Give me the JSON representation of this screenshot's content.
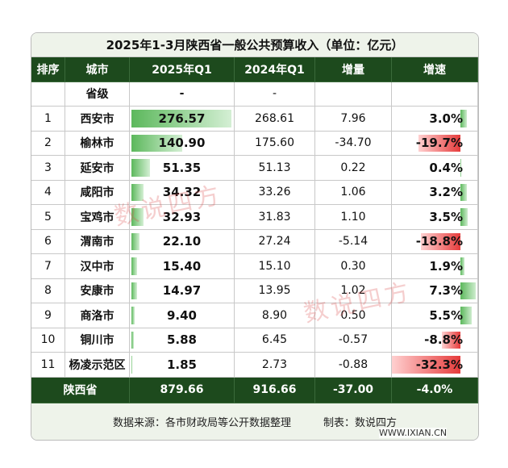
{
  "header": {
    "title": "2025年1-3月陕西省一般公共预算收入（单位：亿元）"
  },
  "table": {
    "columns": [
      "排序",
      "城市",
      "2025年Q1",
      "2024年Q1",
      "增量",
      "增速"
    ],
    "province_level": {
      "city": "省级",
      "q1_2025": "-",
      "q1_2024": "-"
    },
    "rows": [
      [
        "1",
        "西安市",
        "276.57",
        "268.61",
        "7.96",
        "3.0%"
      ],
      [
        "2",
        "榆林市",
        "140.90",
        "175.60",
        "-34.70",
        "-19.7%"
      ],
      [
        "3",
        "延安市",
        "51.35",
        "51.13",
        "0.22",
        "0.4%"
      ],
      [
        "4",
        "咸阳市",
        "34.32",
        "33.26",
        "1.06",
        "3.2%"
      ],
      [
        "5",
        "宝鸡市",
        "32.93",
        "31.83",
        "1.10",
        "3.5%"
      ],
      [
        "6",
        "渭南市",
        "22.10",
        "27.24",
        "-5.14",
        "-18.8%"
      ],
      [
        "7",
        "汉中市",
        "15.40",
        "15.10",
        "0.30",
        "1.9%"
      ],
      [
        "8",
        "安康市",
        "14.97",
        "13.95",
        "1.02",
        "7.3%"
      ],
      [
        "9",
        "商洛市",
        "9.40",
        "8.90",
        "0.50",
        "5.5%"
      ],
      [
        "10",
        "铜川市",
        "5.88",
        "6.45",
        "-0.57",
        "-8.8%"
      ],
      [
        "11",
        "杨凌示范区",
        "1.85",
        "2.73",
        "-0.88",
        "-32.3%"
      ]
    ],
    "total": [
      "陕西省",
      "879.66",
      "916.66",
      "-37.00",
      "-4.0%"
    ]
  },
  "footer": {
    "source": "数据来源：各市财政局等公开数据整理",
    "maker": "制表：数说四方"
  },
  "watermark": {
    "text": "数说四方",
    "site": "WWW.IXIAN.CN"
  }
}
